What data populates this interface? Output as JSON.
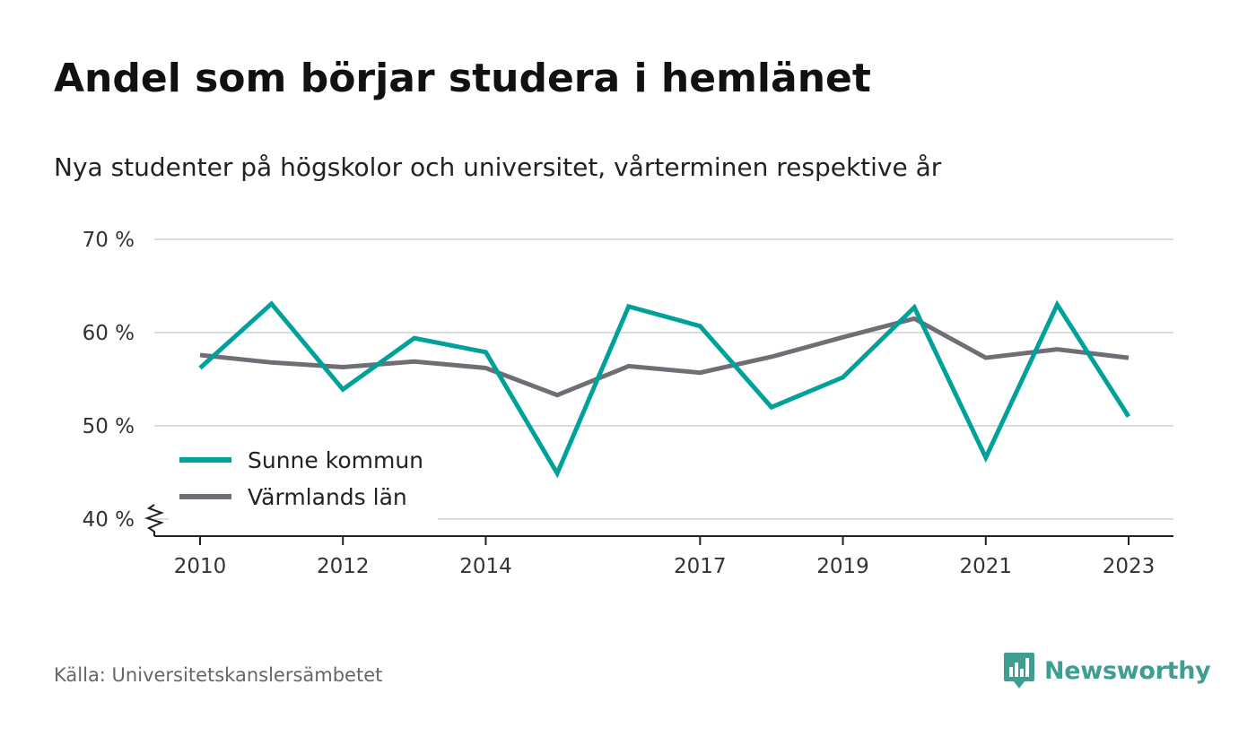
{
  "title": "Andel som börjar studera i hemlänet",
  "subtitle": "Nya studenter på högskolor och universitet, vårterminen respektive år",
  "source": "Källa: Universitetskanslersämbetet",
  "brand": {
    "name": "Newsworthy",
    "icon": "newsworthy-logo-icon",
    "color": "#3e9e92"
  },
  "chart_data": {
    "type": "line",
    "title": "Andel som börjar studera i hemlänet",
    "subtitle": "Nya studenter på högskolor och universitet, vårterminen respektive år",
    "x": [
      2010,
      2011,
      2012,
      2013,
      2014,
      2015,
      2016,
      2017,
      2018,
      2019,
      2020,
      2021,
      2022,
      2023
    ],
    "x_tick_labels": [
      "2010",
      "2012",
      "2014",
      "2017",
      "2019",
      "2021",
      "2023"
    ],
    "y_tick_labels": [
      "40 %",
      "50 %",
      "60 %",
      "70 %"
    ],
    "y_ticks": [
      40,
      50,
      60,
      70
    ],
    "ylim": [
      38,
      70
    ],
    "y_axis_break": true,
    "grid": true,
    "legend_position": "bottom-left",
    "series": [
      {
        "name": "Sunne kommun",
        "color": "#00a19a",
        "values": [
          56.2,
          63.1,
          53.9,
          59.4,
          57.9,
          44.9,
          62.8,
          60.7,
          52.0,
          55.2,
          62.7,
          46.6,
          63.0,
          51.0
        ]
      },
      {
        "name": "Värmlands län",
        "color": "#706d75",
        "values": [
          57.6,
          56.8,
          56.3,
          56.9,
          56.2,
          53.3,
          56.4,
          55.7,
          57.4,
          59.5,
          61.5,
          57.3,
          58.2,
          57.3
        ]
      }
    ]
  }
}
